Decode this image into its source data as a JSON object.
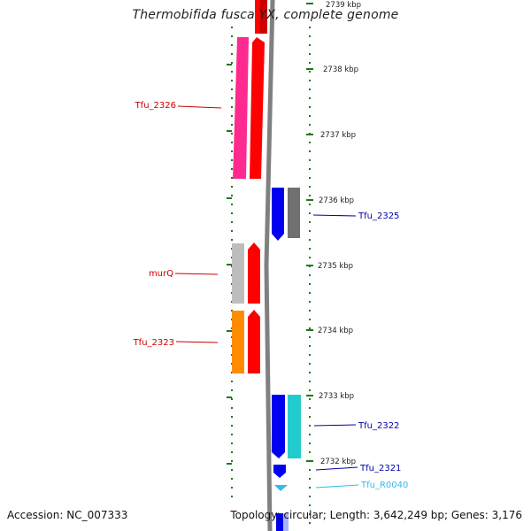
{
  "title": "Thermobifida fusca YX, complete genome",
  "footer": {
    "accession": "Accession: NC_007333",
    "topology": "Topology: circular; Length: 3,642,249 bp; Genes: 3,176"
  },
  "colors": {
    "red": "#ff0000",
    "pink": "#ff2a8f",
    "blue": "#0000ff",
    "gray": "#707070",
    "lightgray": "#bdbdbd",
    "orange": "#ff8c00",
    "cyan": "#22cccc",
    "skyblue": "#33bbee",
    "tick_green": "#1a7a1a"
  },
  "ticks": [
    {
      "label": "2739 kbp"
    },
    {
      "label": "2738 kbp"
    },
    {
      "label": "2737 kbp"
    },
    {
      "label": "2736 kbp"
    },
    {
      "label": "2735 kbp"
    },
    {
      "label": "2734 kbp"
    },
    {
      "label": "2733 kbp"
    },
    {
      "label": "2732 kbp"
    }
  ],
  "gene_labels": [
    {
      "text": "Tfu_2326",
      "color": "#cc0000"
    },
    {
      "text": "murQ",
      "color": "#cc0000"
    },
    {
      "text": "Tfu_2323",
      "color": "#cc0000"
    },
    {
      "text": "Tfu_2325",
      "color": "#0000aa"
    },
    {
      "text": "Tfu_2322",
      "color": "#0000aa"
    },
    {
      "text": "Tfu_2321",
      "color": "#0000aa"
    },
    {
      "text": "Tfu_R0040",
      "color": "#33bbee"
    }
  ]
}
